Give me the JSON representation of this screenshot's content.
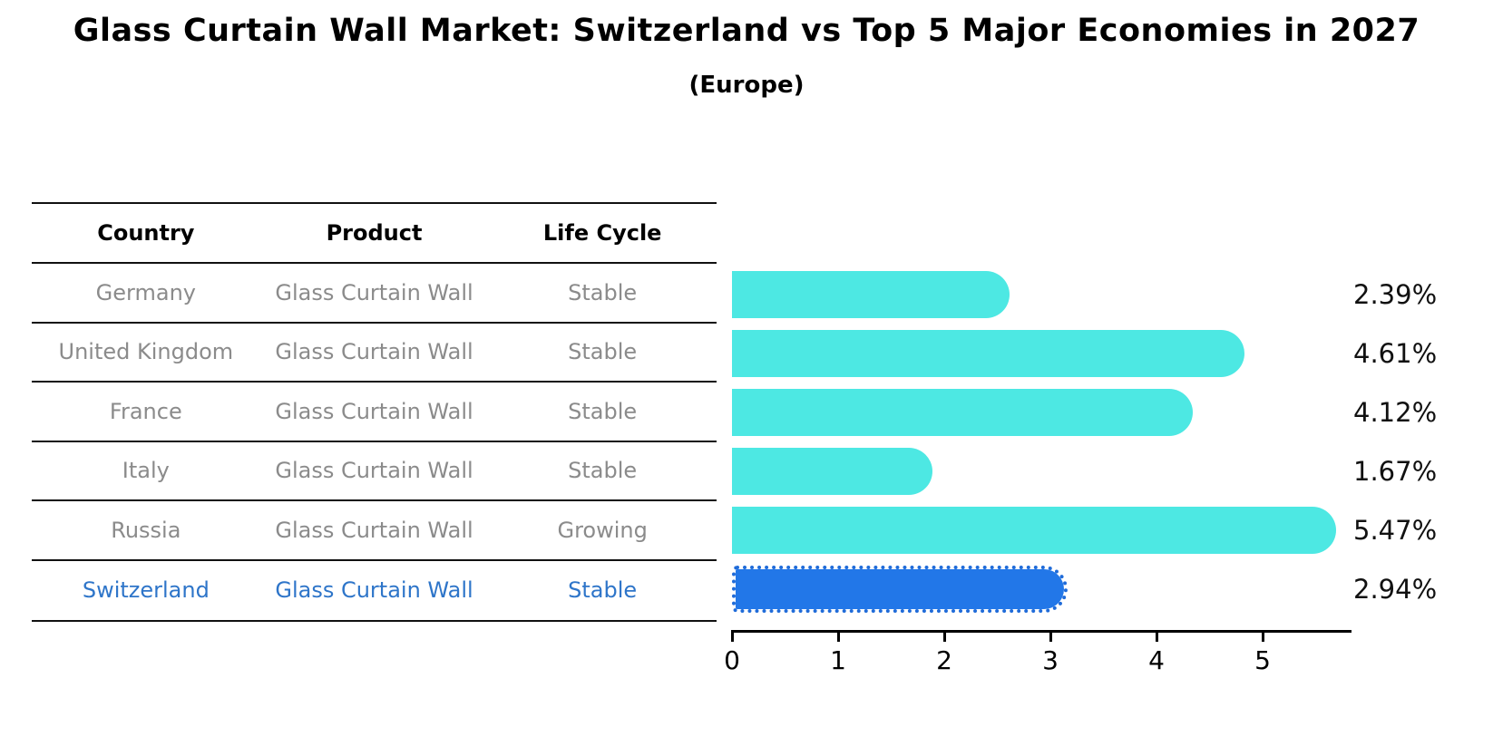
{
  "page": {
    "title": "Glass Curtain Wall Market: Switzerland vs Top 5 Major Economies in 2027",
    "subtitle": "(Europe)"
  },
  "table": {
    "headers": [
      "Country",
      "Product",
      "Life Cycle"
    ],
    "rows": [
      {
        "country": "Germany",
        "product": "Glass Curtain Wall",
        "life_cycle": "Stable",
        "highlighted": false
      },
      {
        "country": "United Kingdom",
        "product": "Glass Curtain Wall",
        "life_cycle": "Stable",
        "highlighted": false
      },
      {
        "country": "France",
        "product": "Glass Curtain Wall",
        "life_cycle": "Stable",
        "highlighted": false
      },
      {
        "country": "Italy",
        "product": "Glass Curtain Wall",
        "life_cycle": "Stable",
        "highlighted": false
      },
      {
        "country": "Russia",
        "product": "Glass Curtain Wall",
        "life_cycle": "Growing",
        "highlighted": false
      },
      {
        "country": "Switzerland",
        "product": "Glass Curtain Wall",
        "life_cycle": "Stable",
        "highlighted": true
      }
    ]
  },
  "chart_data": {
    "type": "bar",
    "orientation": "horizontal",
    "title": "Glass Curtain Wall Market: Switzerland vs Top 5 Major Economies in 2027",
    "subtitle": "(Europe)",
    "categories": [
      "Germany",
      "United Kingdom",
      "France",
      "Italy",
      "Russia",
      "Switzerland"
    ],
    "values": [
      2.39,
      4.61,
      4.12,
      1.67,
      5.47,
      2.94
    ],
    "value_labels": [
      "2.39%",
      "4.61%",
      "4.12%",
      "1.67%",
      "5.47%",
      "2.94%"
    ],
    "xlabel": "",
    "ylabel": "",
    "xlim": [
      0,
      5.8
    ],
    "xticks": [
      "0",
      "1",
      "2",
      "3",
      "4",
      "5"
    ],
    "grid": false,
    "legend": false,
    "highlight_index": 5,
    "colors": {
      "bar": "#4de8e3",
      "highlight_bar": "#2277e8",
      "highlight_text": "#2e75c9",
      "table_text": "#8b8b8b",
      "axis": "#000000",
      "label_text": "#111111"
    }
  }
}
